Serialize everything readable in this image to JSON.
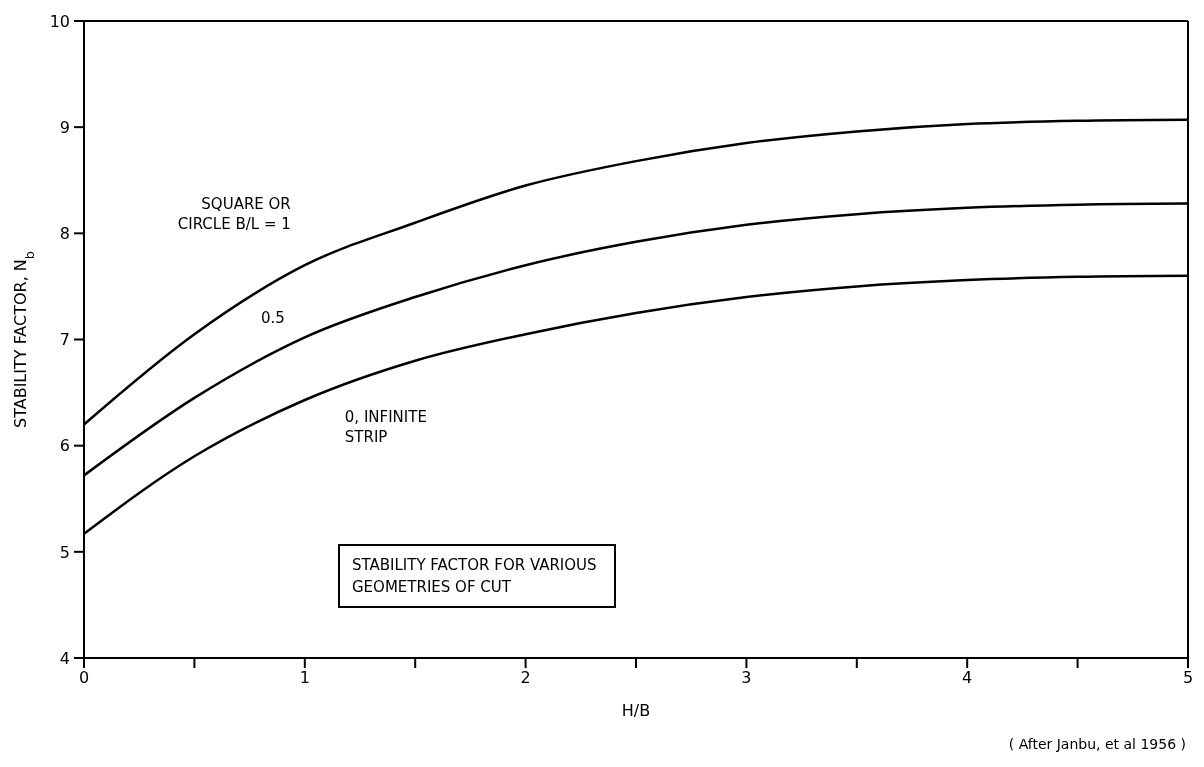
{
  "chart_data": {
    "type": "line",
    "xlabel": "H/B",
    "ylabel": "STABILITY FACTOR, N$_{b}$",
    "x": [
      0,
      0.5,
      1,
      1.5,
      2,
      2.5,
      3,
      3.5,
      4,
      4.5,
      5
    ],
    "series": [
      {
        "name": "SQUARE OR CIRCLE B/L = 1",
        "color": "#000000",
        "values": [
          6.2,
          7.05,
          7.7,
          8.1,
          8.45,
          8.68,
          8.85,
          8.96,
          9.03,
          9.06,
          9.07
        ]
      },
      {
        "name": "0.5",
        "color": "#000000",
        "values": [
          5.72,
          6.45,
          7.02,
          7.4,
          7.7,
          7.92,
          8.08,
          8.18,
          8.24,
          8.27,
          8.28
        ]
      },
      {
        "name": "0, INFINITE STRIP",
        "color": "#000000",
        "values": [
          5.17,
          5.9,
          6.43,
          6.8,
          7.05,
          7.25,
          7.4,
          7.5,
          7.56,
          7.59,
          7.6
        ]
      }
    ],
    "xlim": [
      0,
      5
    ],
    "xticks": [
      0,
      {
        "value": 0.5,
        "label": null
      },
      1,
      {
        "value": 1.5,
        "label": null
      },
      2,
      {
        "value": 2.5,
        "label": null
      },
      3,
      {
        "value": 3.5,
        "label": null
      },
      4,
      {
        "value": 4.5,
        "label": null
      },
      5
    ],
    "ylim": [
      4,
      10
    ],
    "yticks": [
      4,
      5,
      6,
      7,
      8,
      9,
      10
    ],
    "grid": false,
    "legend": false,
    "marker": "none",
    "line_style": "solid",
    "annotations": [
      "STABILITY FACTOR FOR VARIOUS GEOMETRIES OF CUT",
      "( After Janbu, et al 1956 )"
    ]
  }
}
